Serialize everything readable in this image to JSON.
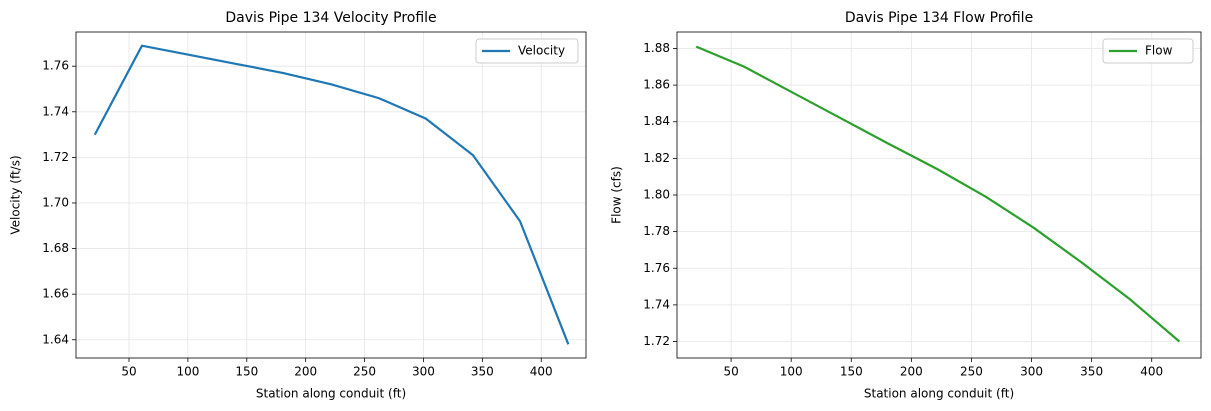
{
  "chart_data": [
    {
      "type": "line",
      "title": "Davis Pipe 134 Velocity Profile",
      "xlabel": "Station along conduit (ft)",
      "ylabel": "Velocity (ft/s)",
      "x": [
        21,
        61,
        101,
        141,
        181,
        222,
        262,
        302,
        342,
        382,
        423
      ],
      "series": [
        {
          "name": "Velocity",
          "color": "#1f77b4",
          "values": [
            1.73,
            1.769,
            1.765,
            1.761,
            1.757,
            1.752,
            1.746,
            1.737,
            1.721,
            1.692,
            1.638
          ]
        }
      ],
      "xlim": [
        5,
        438
      ],
      "ylim": [
        1.632,
        1.775
      ],
      "xticks": [
        50,
        100,
        150,
        200,
        250,
        300,
        350,
        400
      ],
      "yticks": [
        1.64,
        1.66,
        1.68,
        {
          "value": 1.7,
          "label": "1.70"
        },
        1.72,
        1.74,
        1.76
      ],
      "grid": true,
      "legend": "upper right"
    },
    {
      "type": "line",
      "title": "Davis Pipe 134 Flow Profile",
      "xlabel": "Station along conduit (ft)",
      "ylabel": "Flow (cfs)",
      "x": [
        21,
        61,
        101,
        141,
        181,
        222,
        262,
        302,
        342,
        382,
        423
      ],
      "series": [
        {
          "name": "Flow",
          "color": "#2ca02c",
          "values": [
            1.881,
            1.87,
            1.856,
            1.842,
            1.828,
            1.814,
            1.799,
            1.782,
            1.763,
            1.743,
            1.72
          ]
        }
      ],
      "xlim": [
        5,
        441
      ],
      "ylim": [
        1.711,
        1.889
      ],
      "xticks": [
        50,
        100,
        150,
        200,
        250,
        300,
        350,
        400
      ],
      "yticks": [
        1.72,
        1.74,
        1.76,
        1.78,
        {
          "value": 1.8,
          "label": "1.80"
        },
        1.82,
        1.84,
        1.86,
        1.88
      ],
      "grid": true,
      "legend": "upper right"
    }
  ]
}
